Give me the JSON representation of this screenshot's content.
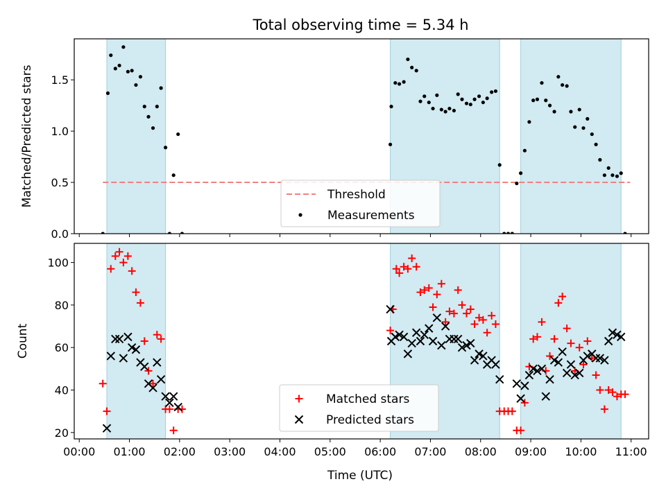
{
  "title": "Total observing time = 5.34 h",
  "colors": {
    "band": "#add8e6",
    "band_edge": "#9fd0dc",
    "threshold": "#f08080",
    "matched": "#ff0000",
    "predicted": "#000000",
    "measurement": "#000000"
  },
  "chart_data": [
    {
      "type": "scatter",
      "ylabel": "Matched/Predicted stars",
      "xlim": [
        -0.1,
        11.35
      ],
      "ylim": [
        0,
        1.9
      ],
      "yticks": [
        "0.0",
        "0.5",
        "1.0",
        "1.5"
      ],
      "xticks": [
        "00:00",
        "01:00",
        "02:00",
        "03:00",
        "04:00",
        "05:00",
        "06:00",
        "07:00",
        "08:00",
        "09:00",
        "10:00",
        "11:00"
      ],
      "shaded_intervals": [
        [
          0.55,
          1.72
        ],
        [
          6.2,
          8.38
        ],
        [
          8.8,
          10.8
        ]
      ],
      "threshold": {
        "name": "Threshold",
        "y": 0.5,
        "x_range": [
          0.47,
          10.98
        ]
      },
      "legend": {
        "position": "bottom-center",
        "entries": [
          "Threshold",
          "Measurements"
        ]
      },
      "series": [
        {
          "name": "Measurements",
          "marker": "dot",
          "points": [
            [
              0.47,
              0
            ],
            [
              0.57,
              1.37
            ],
            [
              0.63,
              1.74
            ],
            [
              0.72,
              1.61
            ],
            [
              0.8,
              1.64
            ],
            [
              0.88,
              1.82
            ],
            [
              0.97,
              1.58
            ],
            [
              1.05,
              1.59
            ],
            [
              1.13,
              1.45
            ],
            [
              1.22,
              1.53
            ],
            [
              1.3,
              1.24
            ],
            [
              1.38,
              1.14
            ],
            [
              1.47,
              1.03
            ],
            [
              1.55,
              1.24
            ],
            [
              1.63,
              1.42
            ],
            [
              1.72,
              0.84
            ],
            [
              1.8,
              0
            ],
            [
              1.88,
              0.57
            ],
            [
              1.97,
              0.97
            ],
            [
              2.05,
              0
            ],
            [
              6.2,
              0.87
            ],
            [
              6.22,
              1.24
            ],
            [
              6.3,
              1.47
            ],
            [
              6.38,
              1.46
            ],
            [
              6.47,
              1.48
            ],
            [
              6.55,
              1.7
            ],
            [
              6.63,
              1.62
            ],
            [
              6.72,
              1.59
            ],
            [
              6.8,
              1.29
            ],
            [
              6.88,
              1.34
            ],
            [
              6.97,
              1.28
            ],
            [
              7.05,
              1.22
            ],
            [
              7.13,
              1.35
            ],
            [
              7.22,
              1.21
            ],
            [
              7.3,
              1.19
            ],
            [
              7.38,
              1.22
            ],
            [
              7.47,
              1.2
            ],
            [
              7.55,
              1.36
            ],
            [
              7.63,
              1.31
            ],
            [
              7.72,
              1.27
            ],
            [
              7.8,
              1.26
            ],
            [
              7.88,
              1.31
            ],
            [
              7.97,
              1.34
            ],
            [
              8.05,
              1.28
            ],
            [
              8.13,
              1.32
            ],
            [
              8.22,
              1.38
            ],
            [
              8.3,
              1.39
            ],
            [
              8.38,
              0.67
            ],
            [
              8.47,
              0
            ],
            [
              8.55,
              0
            ],
            [
              8.63,
              0
            ],
            [
              8.72,
              0.49
            ],
            [
              8.8,
              0.59
            ],
            [
              8.88,
              0.81
            ],
            [
              8.97,
              1.09
            ],
            [
              9.05,
              1.3
            ],
            [
              9.13,
              1.31
            ],
            [
              9.22,
              1.47
            ],
            [
              9.3,
              1.3
            ],
            [
              9.38,
              1.25
            ],
            [
              9.47,
              1.19
            ],
            [
              9.55,
              1.53
            ],
            [
              9.63,
              1.45
            ],
            [
              9.72,
              1.44
            ],
            [
              9.8,
              1.19
            ],
            [
              9.88,
              1.04
            ],
            [
              9.97,
              1.21
            ],
            [
              10.05,
              1.03
            ],
            [
              10.13,
              1.12
            ],
            [
              10.22,
              0.97
            ],
            [
              10.3,
              0.87
            ],
            [
              10.38,
              0.72
            ],
            [
              10.47,
              0.57
            ],
            [
              10.55,
              0.64
            ],
            [
              10.63,
              0.57
            ],
            [
              10.72,
              0.56
            ],
            [
              10.8,
              0.59
            ],
            [
              10.88,
              0
            ]
          ]
        }
      ]
    },
    {
      "type": "scatter",
      "xlabel": "Time (UTC)",
      "ylabel": "Count",
      "xlim": [
        -0.1,
        11.35
      ],
      "ylim": [
        17,
        109
      ],
      "yticks": [
        "20",
        "40",
        "60",
        "80",
        "100"
      ],
      "xticks": [
        "00:00",
        "01:00",
        "02:00",
        "03:00",
        "04:00",
        "05:00",
        "06:00",
        "07:00",
        "08:00",
        "09:00",
        "10:00",
        "11:00"
      ],
      "shaded_intervals": [
        [
          0.55,
          1.72
        ],
        [
          6.2,
          8.38
        ],
        [
          8.8,
          10.8
        ]
      ],
      "legend": {
        "position": "bottom-center",
        "entries": [
          "Matched stars",
          "Predicted stars"
        ]
      },
      "series": [
        {
          "name": "Matched stars",
          "marker": "plus",
          "points": [
            [
              0.47,
              43
            ],
            [
              0.55,
              30
            ],
            [
              0.63,
              97
            ],
            [
              0.72,
              103
            ],
            [
              0.8,
              105
            ],
            [
              0.88,
              100
            ],
            [
              0.97,
              103
            ],
            [
              1.05,
              96
            ],
            [
              1.13,
              86
            ],
            [
              1.22,
              81
            ],
            [
              1.3,
              63
            ],
            [
              1.38,
              49
            ],
            [
              1.47,
              43
            ],
            [
              1.55,
              66
            ],
            [
              1.63,
              64
            ],
            [
              1.72,
              31
            ],
            [
              1.8,
              31
            ],
            [
              1.88,
              21
            ],
            [
              1.97,
              31
            ],
            [
              2.05,
              31
            ],
            [
              6.2,
              68
            ],
            [
              6.25,
              78
            ],
            [
              6.32,
              97
            ],
            [
              6.38,
              95
            ],
            [
              6.47,
              98
            ],
            [
              6.55,
              97
            ],
            [
              6.63,
              102
            ],
            [
              6.72,
              98
            ],
            [
              6.8,
              86
            ],
            [
              6.88,
              87
            ],
            [
              6.97,
              88
            ],
            [
              7.05,
              79
            ],
            [
              7.13,
              85
            ],
            [
              7.22,
              90
            ],
            [
              7.3,
              72
            ],
            [
              7.38,
              77
            ],
            [
              7.47,
              76
            ],
            [
              7.55,
              87
            ],
            [
              7.63,
              80
            ],
            [
              7.72,
              76
            ],
            [
              7.8,
              78
            ],
            [
              7.88,
              71
            ],
            [
              7.97,
              74
            ],
            [
              8.05,
              73
            ],
            [
              8.13,
              67
            ],
            [
              8.22,
              75
            ],
            [
              8.3,
              71
            ],
            [
              8.38,
              30
            ],
            [
              8.47,
              30
            ],
            [
              8.55,
              30
            ],
            [
              8.63,
              30
            ],
            [
              8.72,
              21
            ],
            [
              8.8,
              21
            ],
            [
              8.88,
              34
            ],
            [
              8.97,
              51
            ],
            [
              9.05,
              64
            ],
            [
              9.13,
              65
            ],
            [
              9.22,
              72
            ],
            [
              9.3,
              49
            ],
            [
              9.38,
              56
            ],
            [
              9.47,
              64
            ],
            [
              9.55,
              81
            ],
            [
              9.63,
              84
            ],
            [
              9.72,
              69
            ],
            [
              9.8,
              62
            ],
            [
              9.88,
              49
            ],
            [
              9.97,
              60
            ],
            [
              10.05,
              52
            ],
            [
              10.13,
              63
            ],
            [
              10.22,
              55
            ],
            [
              10.3,
              47
            ],
            [
              10.38,
              40
            ],
            [
              10.47,
              31
            ],
            [
              10.55,
              40
            ],
            [
              10.63,
              39
            ],
            [
              10.72,
              37
            ],
            [
              10.8,
              38
            ],
            [
              10.88,
              38
            ]
          ]
        },
        {
          "name": "Predicted stars",
          "marker": "cross",
          "points": [
            [
              0.55,
              22
            ],
            [
              0.63,
              56
            ],
            [
              0.72,
              64
            ],
            [
              0.8,
              64
            ],
            [
              0.88,
              55
            ],
            [
              0.97,
              65
            ],
            [
              1.05,
              60
            ],
            [
              1.13,
              59
            ],
            [
              1.22,
              53
            ],
            [
              1.3,
              51
            ],
            [
              1.38,
              43
            ],
            [
              1.47,
              41
            ],
            [
              1.55,
              53
            ],
            [
              1.63,
              45
            ],
            [
              1.72,
              37
            ],
            [
              1.8,
              34
            ],
            [
              1.88,
              37
            ],
            [
              1.97,
              32
            ],
            [
              6.2,
              78
            ],
            [
              6.22,
              63
            ],
            [
              6.3,
              65
            ],
            [
              6.38,
              66
            ],
            [
              6.47,
              65
            ],
            [
              6.55,
              57
            ],
            [
              6.63,
              62
            ],
            [
              6.72,
              67
            ],
            [
              6.8,
              63
            ],
            [
              6.88,
              66
            ],
            [
              6.97,
              69
            ],
            [
              7.05,
              63
            ],
            [
              7.13,
              74
            ],
            [
              7.22,
              61
            ],
            [
              7.3,
              70
            ],
            [
              7.38,
              64
            ],
            [
              7.47,
              64
            ],
            [
              7.55,
              64
            ],
            [
              7.63,
              60
            ],
            [
              7.72,
              61
            ],
            [
              7.8,
              62
            ],
            [
              7.88,
              54
            ],
            [
              7.97,
              57
            ],
            [
              8.05,
              56
            ],
            [
              8.13,
              52
            ],
            [
              8.22,
              54
            ],
            [
              8.3,
              52
            ],
            [
              8.38,
              45
            ],
            [
              8.72,
              43
            ],
            [
              8.8,
              36
            ],
            [
              8.88,
              42
            ],
            [
              8.97,
              47
            ],
            [
              9.05,
              50
            ],
            [
              9.13,
              49
            ],
            [
              9.22,
              50
            ],
            [
              9.3,
              37
            ],
            [
              9.38,
              45
            ],
            [
              9.47,
              54
            ],
            [
              9.55,
              53
            ],
            [
              9.63,
              58
            ],
            [
              9.72,
              48
            ],
            [
              9.8,
              52
            ],
            [
              9.88,
              47
            ],
            [
              9.97,
              48
            ],
            [
              10.05,
              54
            ],
            [
              10.13,
              56
            ],
            [
              10.22,
              57
            ],
            [
              10.3,
              55
            ],
            [
              10.38,
              55
            ],
            [
              10.47,
              54
            ],
            [
              10.55,
              63
            ],
            [
              10.63,
              67
            ],
            [
              10.72,
              66
            ],
            [
              10.8,
              65
            ]
          ]
        }
      ]
    }
  ]
}
